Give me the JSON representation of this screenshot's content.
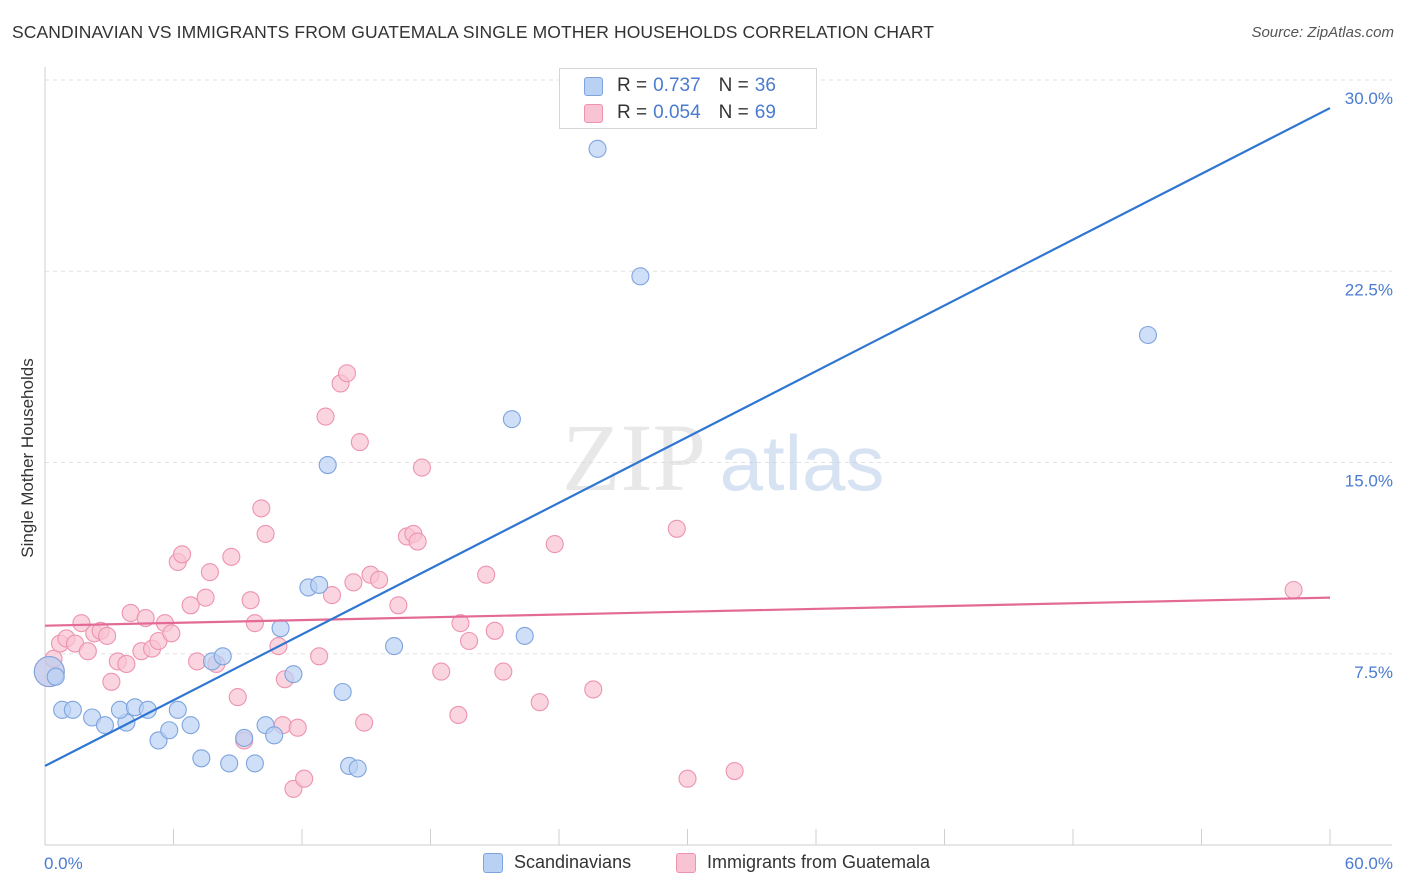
{
  "header": {
    "title": "SCANDINAVIAN VS IMMIGRANTS FROM GUATEMALA SINGLE MOTHER HOUSEHOLDS CORRELATION CHART",
    "source": "Source: ZipAtlas.com"
  },
  "legend_top": {
    "rows": [
      {
        "r_label": "R =",
        "r_value": "0.737",
        "n_label": "N =",
        "n_value": "36"
      },
      {
        "r_label": "R =",
        "r_value": "0.054",
        "n_label": "N =",
        "n_value": "69"
      }
    ]
  },
  "legend_bottom": {
    "items": [
      "Scandinavians",
      "Immigrants from Guatemala"
    ]
  },
  "watermark": {
    "zip": "ZIP",
    "atlas": "atlas"
  },
  "colors": {
    "blue_fill": "#b9d1f3",
    "blue_stroke": "#7ea4de",
    "blue_line": "#2f76d2",
    "pink_fill": "#f8c3d3",
    "pink_stroke": "#ee93b0",
    "pink_line": "#e46a96",
    "tick_label": "#4a7bd0",
    "grid": "#e2e2e2"
  },
  "chart_data": {
    "type": "scatter",
    "title": "SCANDINAVIAN VS IMMIGRANTS FROM GUATEMALA SINGLE MOTHER HOUSEHOLDS CORRELATION CHART",
    "xlabel": "",
    "ylabel": "Single Mother Households",
    "xlim": [
      0,
      60
    ],
    "ylim": [
      0,
      30
    ],
    "x_tick_labels": [
      "0.0%",
      "60.0%"
    ],
    "y_ticks": [
      7.5,
      15.0,
      22.5,
      30.0
    ],
    "y_tick_labels": [
      "7.5%",
      "15.0%",
      "22.5%",
      "30.0%"
    ],
    "grid": true,
    "legend_position": "top-center",
    "series": [
      {
        "name": "Scandinavians",
        "r": 0.737,
        "n": 36,
        "trend": [
          [
            0,
            3.1
          ],
          [
            60,
            28.9
          ]
        ],
        "points": [
          [
            0.2,
            6.8
          ],
          [
            0.8,
            5.3
          ],
          [
            1.3,
            5.3
          ],
          [
            2.2,
            5.0
          ],
          [
            2.8,
            4.7
          ],
          [
            3.8,
            4.8
          ],
          [
            3.5,
            5.3
          ],
          [
            4.2,
            5.4
          ],
          [
            4.8,
            5.3
          ],
          [
            5.3,
            4.1
          ],
          [
            5.8,
            4.5
          ],
          [
            6.2,
            5.3
          ],
          [
            6.8,
            4.7
          ],
          [
            7.3,
            3.4
          ],
          [
            7.8,
            7.2
          ],
          [
            8.3,
            7.4
          ],
          [
            8.6,
            3.2
          ],
          [
            9.3,
            4.2
          ],
          [
            9.8,
            3.2
          ],
          [
            10.3,
            4.7
          ],
          [
            10.7,
            4.3
          ],
          [
            11.0,
            8.5
          ],
          [
            11.6,
            6.7
          ],
          [
            12.3,
            10.1
          ],
          [
            12.8,
            10.2
          ],
          [
            13.2,
            14.9
          ],
          [
            13.9,
            6.0
          ],
          [
            14.2,
            3.1
          ],
          [
            14.6,
            3.0
          ],
          [
            16.3,
            7.8
          ],
          [
            21.8,
            16.7
          ],
          [
            22.4,
            8.2
          ],
          [
            25.8,
            27.3
          ],
          [
            27.8,
            22.3
          ],
          [
            51.5,
            20.0
          ],
          [
            0.5,
            6.6
          ]
        ]
      },
      {
        "name": "Immigrants from Guatemala",
        "r": 0.054,
        "n": 69,
        "trend": [
          [
            0,
            8.6
          ],
          [
            60,
            9.7
          ]
        ],
        "points": [
          [
            0.2,
            6.8
          ],
          [
            0.4,
            7.3
          ],
          [
            0.7,
            7.9
          ],
          [
            1.0,
            8.1
          ],
          [
            1.4,
            7.9
          ],
          [
            1.7,
            8.7
          ],
          [
            2.0,
            7.6
          ],
          [
            2.3,
            8.3
          ],
          [
            2.6,
            8.4
          ],
          [
            2.9,
            8.2
          ],
          [
            3.1,
            6.4
          ],
          [
            3.4,
            7.2
          ],
          [
            3.8,
            7.1
          ],
          [
            4.0,
            9.1
          ],
          [
            4.5,
            7.6
          ],
          [
            4.7,
            8.9
          ],
          [
            5.0,
            7.7
          ],
          [
            5.3,
            8.0
          ],
          [
            5.6,
            8.7
          ],
          [
            5.9,
            8.3
          ],
          [
            6.2,
            11.1
          ],
          [
            6.4,
            11.4
          ],
          [
            6.8,
            9.4
          ],
          [
            7.1,
            7.2
          ],
          [
            7.5,
            9.7
          ],
          [
            7.7,
            10.7
          ],
          [
            8.0,
            7.1
          ],
          [
            8.7,
            11.3
          ],
          [
            9.0,
            5.8
          ],
          [
            9.3,
            4.1
          ],
          [
            9.6,
            9.6
          ],
          [
            9.8,
            8.7
          ],
          [
            10.1,
            13.2
          ],
          [
            10.3,
            12.2
          ],
          [
            10.9,
            7.8
          ],
          [
            11.1,
            4.7
          ],
          [
            11.2,
            6.5
          ],
          [
            11.6,
            2.2
          ],
          [
            12.1,
            2.6
          ],
          [
            12.8,
            7.4
          ],
          [
            13.1,
            16.8
          ],
          [
            13.4,
            9.8
          ],
          [
            13.8,
            18.1
          ],
          [
            14.1,
            18.5
          ],
          [
            14.4,
            10.3
          ],
          [
            14.7,
            15.8
          ],
          [
            14.9,
            4.8
          ],
          [
            15.2,
            10.6
          ],
          [
            15.6,
            10.4
          ],
          [
            16.5,
            9.4
          ],
          [
            16.9,
            12.1
          ],
          [
            17.2,
            12.2
          ],
          [
            17.4,
            11.9
          ],
          [
            17.6,
            14.8
          ],
          [
            18.5,
            6.8
          ],
          [
            19.3,
            5.1
          ],
          [
            19.4,
            8.7
          ],
          [
            19.8,
            8.0
          ],
          [
            20.6,
            10.6
          ],
          [
            21.0,
            8.4
          ],
          [
            21.4,
            6.8
          ],
          [
            23.1,
            5.6
          ],
          [
            23.8,
            11.8
          ],
          [
            25.6,
            6.1
          ],
          [
            29.5,
            12.4
          ],
          [
            30.0,
            2.6
          ],
          [
            32.2,
            2.9
          ],
          [
            58.3,
            10.0
          ],
          [
            11.8,
            4.6
          ]
        ]
      }
    ]
  }
}
